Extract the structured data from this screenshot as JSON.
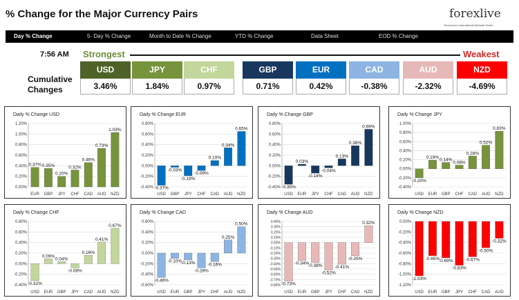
{
  "header": {
    "title": "% Change for the Major Currency Pairs"
  },
  "logo": {
    "name": "forexlive",
    "tagline": "Tomorrow's International Website Series"
  },
  "nav": {
    "items": [
      {
        "label": "Day % Change",
        "active": true
      },
      {
        "label": "5- Day % Change",
        "active": false
      },
      {
        "label": "Month to Date % Change",
        "active": false
      },
      {
        "label": "YTD % Change",
        "active": false
      },
      {
        "label": "Data Sheet",
        "active": false
      },
      {
        "label": "EOD % Change",
        "active": false
      }
    ]
  },
  "summary": {
    "time": "7:56 AM",
    "strongest_label": "Strongest",
    "weakest_label": "Weakest",
    "cumulative_label": "Cumulative Changes",
    "currencies": [
      {
        "code": "USD",
        "value": "3.46%",
        "color": "#4f6228"
      },
      {
        "code": "JPY",
        "value": "1.84%",
        "color": "#77933c"
      },
      {
        "code": "CHF",
        "value": "0.97%",
        "color": "#c3d69b"
      },
      {
        "code": "GBP",
        "value": "0.71%",
        "color": "#17375e"
      },
      {
        "code": "EUR",
        "value": "0.42%",
        "color": "#0070c0"
      },
      {
        "code": "CAD",
        "value": "-0.38%",
        "color": "#8db4e2"
      },
      {
        "code": "AUD",
        "value": "-2.32%",
        "color": "#e6b9b8"
      },
      {
        "code": "NZD",
        "value": "-4.69%",
        "color": "#ff0000"
      }
    ]
  },
  "chart_data": [
    {
      "type": "bar",
      "title": "Daily % Change USD",
      "categories": [
        "EUR",
        "GBP",
        "JPY",
        "CHF",
        "CAD",
        "AUD",
        "NZD"
      ],
      "values": [
        0.37,
        0.35,
        0.2,
        0.32,
        0.46,
        0.73,
        1.03
      ],
      "labels": [
        "0.37%",
        "0.35%",
        "0.20%",
        "0.32%",
        "0.46%",
        "0.73%",
        "1.03%"
      ],
      "ylim": [
        0,
        1.2
      ],
      "step": 0.2,
      "tick_labels": [
        "0.00%",
        "0.20%",
        "0.40%",
        "0.60%",
        "0.80%",
        "1.00%",
        "1.20%"
      ],
      "color": "#77933c"
    },
    {
      "type": "bar",
      "title": "Daily % Change EUR",
      "categories": [
        "USD",
        "GBP",
        "JPY",
        "CHF",
        "CAD",
        "AUD",
        "NZD"
      ],
      "values": [
        -0.37,
        -0.03,
        -0.19,
        -0.09,
        0.1,
        0.34,
        0.65
      ],
      "labels": [
        "-0.37%",
        "-0.03%",
        "-0.19%",
        "-0.09%",
        "0.10%",
        "0.34%",
        "0.65%"
      ],
      "ylim": [
        -0.4,
        0.8
      ],
      "step": 0.2,
      "tick_labels": [
        "-0.40%",
        "-0.20%",
        "0.00%",
        "0.20%",
        "0.40%",
        "0.60%",
        "0.80%"
      ],
      "color": "#0070c0"
    },
    {
      "type": "bar",
      "title": "Daily % Change GBP",
      "categories": [
        "USD",
        "EUR",
        "JPY",
        "CHF",
        "CAD",
        "AUD",
        "NZD"
      ],
      "values": [
        -0.35,
        0.03,
        -0.14,
        -0.04,
        0.13,
        0.38,
        0.69
      ],
      "labels": [
        "-0.35%",
        "0.03%",
        "-0.14%",
        "-0.04%",
        "0.13%",
        "0.38%",
        "0.69%"
      ],
      "ylim": [
        -0.4,
        0.8
      ],
      "step": 0.2,
      "tick_labels": [
        "-0.40%",
        "-0.20%",
        "0.00%",
        "0.20%",
        "0.40%",
        "0.60%",
        "0.80%"
      ],
      "color": "#17375e"
    },
    {
      "type": "bar",
      "title": "Daily % Change JPY",
      "categories": [
        "USD",
        "EUR",
        "GBP",
        "CHF",
        "CAD",
        "AUD",
        "NZD"
      ],
      "values": [
        -0.2,
        0.19,
        0.14,
        0.08,
        0.28,
        0.52,
        0.83
      ],
      "labels": [
        "-0.20%",
        "0.19%",
        "0.14%",
        "0.08%",
        "0.28%",
        "0.52%",
        "0.83%"
      ],
      "ylim": [
        -0.4,
        1.0
      ],
      "step": 0.2,
      "tick_labels": [
        "-0.40%",
        "-0.20%",
        "0.00%",
        "0.20%",
        "0.40%",
        "0.60%",
        "0.80%",
        "1.00%"
      ],
      "color": "#77933c"
    },
    {
      "type": "bar",
      "title": "Daily % Change CHF",
      "categories": [
        "USD",
        "EUR",
        "GBP",
        "JPY",
        "CAD",
        "AUD",
        "NZD"
      ],
      "values": [
        -0.32,
        0.09,
        0.04,
        -0.08,
        0.16,
        0.41,
        0.67
      ],
      "labels": [
        "-0.32%",
        "0.09%",
        "0.04%",
        "-0.08%",
        "0.16%",
        "0.41%",
        "0.67%"
      ],
      "ylim": [
        -0.4,
        0.8
      ],
      "step": 0.2,
      "tick_labels": [
        "-0.40%",
        "-0.20%",
        "0.00%",
        "0.20%",
        "0.40%",
        "0.60%",
        "0.80%"
      ],
      "color": "#c3d69b"
    },
    {
      "type": "bar",
      "title": "Daily % Change CAD",
      "categories": [
        "USD",
        "EUR",
        "GBP",
        "JPY",
        "CHF",
        "AUD",
        "NZD"
      ],
      "values": [
        -0.46,
        -0.1,
        -0.13,
        -0.28,
        -0.16,
        0.25,
        0.5
      ],
      "labels": [
        "-0.46%",
        "-0.10%",
        "-0.13%",
        "-0.28%",
        "-0.16%",
        "0.25%",
        "0.50%"
      ],
      "ylim": [
        -0.6,
        0.6
      ],
      "step": 0.2,
      "tick_labels": [
        "-0.60%",
        "-0.40%",
        "-0.20%",
        "0.00%",
        "0.20%",
        "0.40%",
        "0.60%"
      ],
      "color": "#8db4e2"
    },
    {
      "type": "bar",
      "title": "Daily % Change AUD",
      "categories": [
        "USD",
        "EUR",
        "GBP",
        "JPY",
        "CHF",
        "CAD",
        "NZD"
      ],
      "values": [
        -0.73,
        -0.34,
        -0.38,
        -0.52,
        -0.41,
        -0.25,
        0.32
      ],
      "labels": [
        "-0.73%",
        "-0.34%",
        "-0.38%",
        "-0.52%",
        "-0.41%",
        "-0.25%",
        "0.32%"
      ],
      "ylim": [
        -0.8,
        0.4
      ],
      "step": 0.1,
      "tick_labels": [
        "-0.80%",
        "-0.70%",
        "-0.60%",
        "-0.50%",
        "-0.40%",
        "-0.30%",
        "-0.20%",
        "-0.10%",
        "0.00%",
        "0.10%",
        "0.20%",
        "0.30%",
        "0.40%"
      ],
      "color": "#e6b9b8"
    },
    {
      "type": "bar",
      "title": "Daily % Change NZD",
      "categories": [
        "USD",
        "EUR",
        "GBP",
        "JPY",
        "CHF",
        "CAD",
        "AUD"
      ],
      "values": [
        -1.03,
        -0.65,
        -0.69,
        -0.83,
        -0.67,
        -0.5,
        -0.32
      ],
      "labels": [
        "-1.03%",
        "-0.65%",
        "-0.69%",
        "-0.83%",
        "-0.67%",
        "-0.50%",
        "-0.32%"
      ],
      "ylim": [
        -1.2,
        0
      ],
      "step": 0.2,
      "tick_labels": [
        "-1.20%",
        "-1.00%",
        "-0.80%",
        "-0.60%",
        "-0.40%",
        "-0.20%",
        "0.00%"
      ],
      "color": "#ff0000"
    }
  ]
}
